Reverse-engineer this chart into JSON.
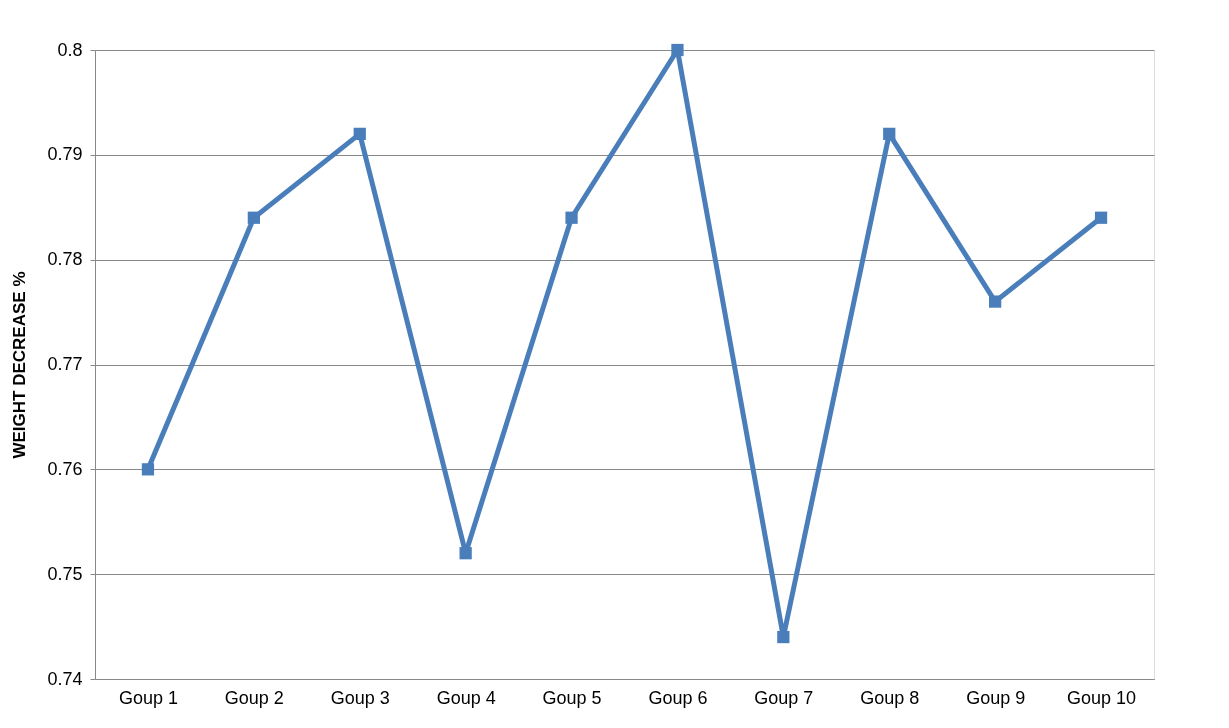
{
  "chart_data": {
    "type": "line",
    "ylabel": "WEIGHT DECREASE  %",
    "categories": [
      "Goup 1",
      "Goup 2",
      "Goup 3",
      "Goup 4",
      "Goup 5",
      "Goup 6",
      "Goup 7",
      "Goup 8",
      "Goup 9",
      "Goup 10"
    ],
    "series": [
      {
        "color": "#4a7ebb",
        "values": [
          0.76,
          0.784,
          0.792,
          0.752,
          0.784,
          0.8,
          0.744,
          0.792,
          0.776,
          0.784
        ]
      }
    ],
    "ylim": [
      0.74,
      0.8
    ],
    "yticks": [
      0.74,
      0.75,
      0.76,
      0.77,
      0.78,
      0.79,
      0.8
    ],
    "grid": "y",
    "marker": "square",
    "line_style": "solid",
    "legend": false
  }
}
